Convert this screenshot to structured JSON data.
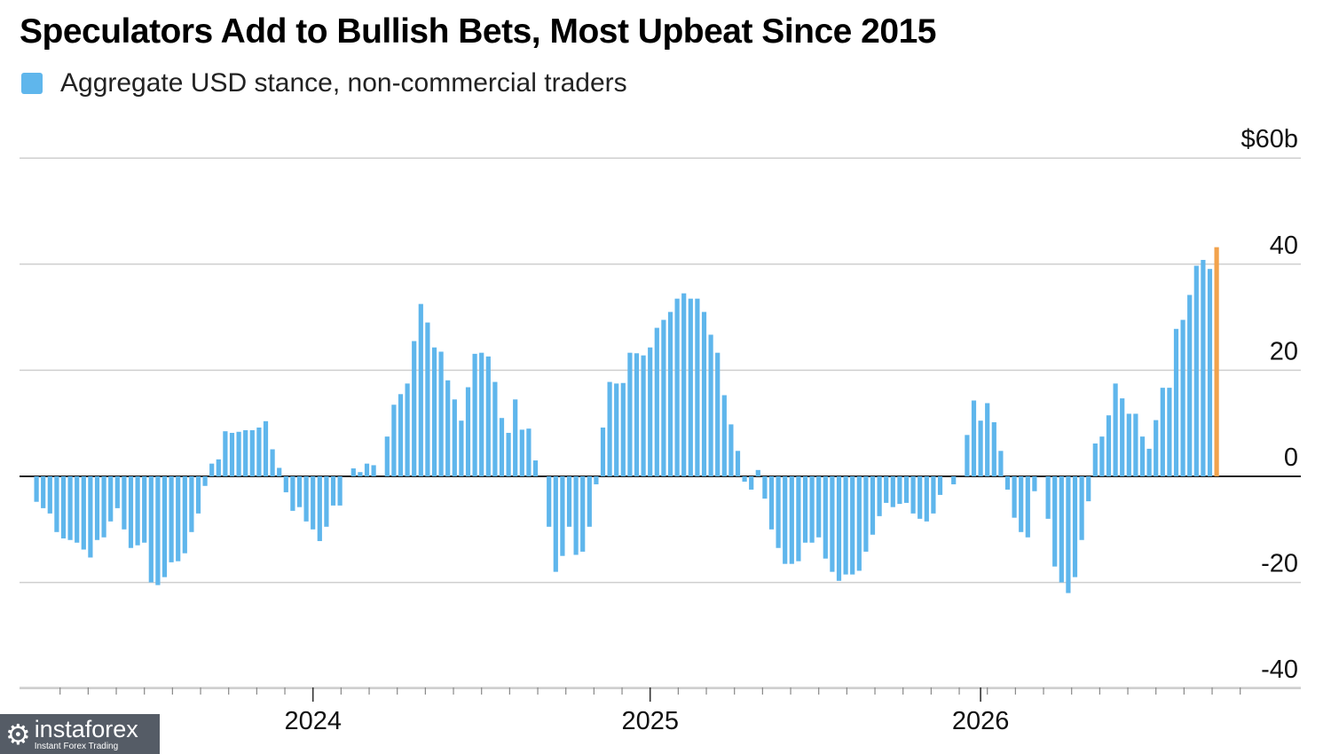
{
  "colors": {
    "bar": "#5fb6ec",
    "latest": "#f2a24c",
    "grid": "#cfcfcf",
    "zero": "#222222"
  },
  "watermark": {
    "brand": "instaforex",
    "tagline": "Instant Forex Trading",
    "icon": "gear-icon"
  },
  "chart_data": {
    "type": "bar",
    "title": "Speculators Add to Bullish Bets, Most Upbeat Since 2015",
    "legend": [
      "Aggregate USD stance, non-commercial traders"
    ],
    "y_unit_label": "$60b",
    "yticks": [
      60,
      40,
      20,
      0,
      -20,
      -40
    ],
    "ytick_labels": [
      "$60b",
      "40",
      "20",
      "0",
      "-20",
      "-40"
    ],
    "ylim": [
      -40,
      60
    ],
    "xtick_labels": [
      "2024",
      "2025",
      "2026"
    ],
    "xtick_bar_index": [
      41,
      91,
      140
    ],
    "grid": true,
    "legend_position": "top-left",
    "series": [
      {
        "name": "Aggregate USD stance, non-commercial traders",
        "values": [
          -4.8,
          -6,
          -7,
          -10.5,
          -11.7,
          -12,
          -12.5,
          -13.8,
          -15.3,
          -12,
          -11.5,
          -8.5,
          -6,
          -10,
          -13.5,
          -13,
          -12.5,
          -20,
          -20.5,
          -19,
          -16.2,
          -16,
          -14.5,
          -10.5,
          -7,
          -1.8,
          2.4,
          3.2,
          8.5,
          8.2,
          8.4,
          8.7,
          8.7,
          9.2,
          10.4,
          5.1,
          1.6,
          -3,
          -6.5,
          -5.8,
          -8.5,
          -10,
          -12.2,
          -9.5,
          -5.5,
          -5.5,
          0,
          1.5,
          0.8,
          2.4,
          2.1,
          0,
          7.5,
          13.5,
          15.5,
          17.5,
          25.5,
          32.5,
          29,
          24.3,
          23.5,
          18.1,
          14.5,
          10.5,
          16.8,
          23.1,
          23.3,
          22.6,
          17.8,
          11,
          8.2,
          14.5,
          8.8,
          9,
          3,
          0,
          -9.5,
          -18,
          -15,
          -9.5,
          -14.8,
          -14.2,
          -9.5,
          -1.5,
          9.2,
          17.8,
          17.5,
          17.6,
          23.3,
          23.2,
          22.8,
          24.3,
          28,
          29.5,
          31,
          33.5,
          34.5,
          33.5,
          33.5,
          31,
          26.7,
          23.3,
          15.3,
          9.8,
          4.8,
          -1,
          -2.5,
          1.2,
          -4.2,
          -10,
          -13.5,
          -16.5,
          -16.5,
          -16,
          -12.5,
          -12.5,
          -11.5,
          -15.5,
          -18,
          -19.7,
          -18.5,
          -18.5,
          -17.8,
          -14.2,
          -11,
          -7.5,
          -5,
          -5.8,
          -5.2,
          -5,
          -7,
          -8,
          -8.5,
          -7,
          -3.5,
          0,
          -1.5,
          0,
          7.8,
          14.3,
          10.5,
          13.8,
          10.2,
          4.8,
          -2.5,
          -7.8,
          -10.5,
          -11.5,
          -2.8,
          0,
          -8,
          -17,
          -20,
          -22,
          -19,
          -12,
          -4.7,
          6.2,
          7.5,
          11.5,
          17.5,
          14.7,
          11.8,
          11.8,
          7.5,
          5.2,
          10.6,
          16.7,
          16.7,
          27.8,
          29.5,
          34.2,
          39.7,
          40.8,
          39.1,
          43.2
        ]
      }
    ]
  }
}
